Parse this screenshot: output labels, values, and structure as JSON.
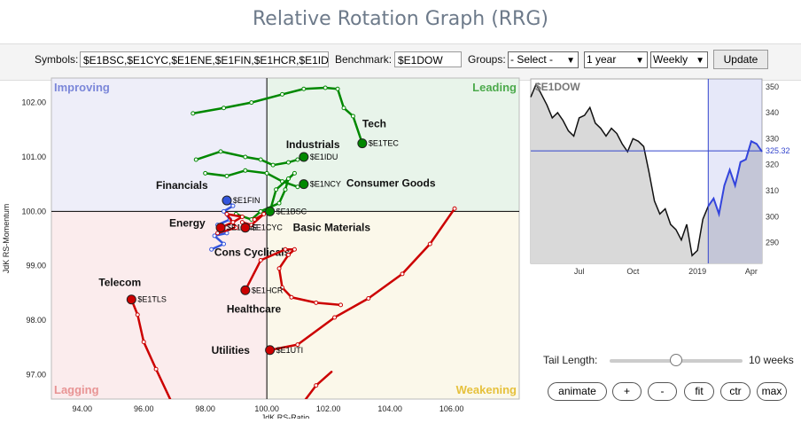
{
  "title": "Relative Rotation Graph (RRG)",
  "toolbar": {
    "symbols_label": "Symbols:",
    "symbols_value": "$E1BSC,$E1CYC,$E1ENE,$E1FIN,$E1HCR,$E1ID",
    "benchmark_label": "Benchmark:",
    "benchmark_value": "$E1DOW",
    "groups_label": "Groups:",
    "groups_value": "- Select -",
    "period_value": "1 year",
    "frequency_value": "Weekly",
    "update_label": "Update"
  },
  "chart_data": [
    {
      "type": "scatter",
      "xlabel": "JdK RS-Ratio",
      "ylabel": "JdK RS-Momentum",
      "xlim": [
        93,
        108.2
      ],
      "ylim": [
        96.55,
        102.45
      ],
      "xticks": [
        "94.00",
        "96.00",
        "98.00",
        "100.00",
        "102.00",
        "104.00",
        "106.00"
      ],
      "yticks": [
        "97.00",
        "98.00",
        "99.00",
        "100.00",
        "101.00",
        "102.00"
      ],
      "quadrants": {
        "improving": {
          "label": "Improving",
          "color": "#eeeef9",
          "text_color": "#7b87d9"
        },
        "leading": {
          "label": "Leading",
          "color": "#e8f4ea",
          "text_color": "#4caa4c"
        },
        "lagging": {
          "label": "Lagging",
          "color": "#fbeced",
          "text_color": "#e89494"
        },
        "weakening": {
          "label": "Weakening",
          "color": "#fbf8ea",
          "text_color": "#e6c13c"
        }
      },
      "series": [
        {
          "name": "Tech",
          "symbol": "$E1TEC",
          "color": "#008800",
          "points": [
            [
              97.6,
              101.8
            ],
            [
              98.6,
              101.9
            ],
            [
              99.5,
              102.0
            ],
            [
              100.5,
              102.15
            ],
            [
              101.2,
              102.25
            ],
            [
              101.9,
              102.27
            ],
            [
              102.3,
              102.25
            ],
            [
              102.5,
              101.9
            ],
            [
              102.8,
              101.75
            ],
            [
              103.1,
              101.25
            ]
          ]
        },
        {
          "name": "Industrials",
          "symbol": "$E1IDU",
          "color": "#008800",
          "points": [
            [
              97.7,
              100.95
            ],
            [
              98.5,
              101.1
            ],
            [
              99.3,
              101.0
            ],
            [
              99.8,
              100.95
            ],
            [
              100.2,
              100.85
            ],
            [
              100.7,
              100.9
            ],
            [
              101.0,
              100.95
            ],
            [
              101.2,
              101.0
            ]
          ]
        },
        {
          "name": "Consumer Goods",
          "symbol": "$E1NCY",
          "color": "#008800",
          "points": [
            [
              98.0,
              100.7
            ],
            [
              98.7,
              100.65
            ],
            [
              99.3,
              100.75
            ],
            [
              100.0,
              100.7
            ],
            [
              100.5,
              100.55
            ],
            [
              101.0,
              100.45
            ],
            [
              101.2,
              100.5
            ]
          ]
        },
        {
          "name": "Basic Materials",
          "symbol": "$E1BSC",
          "color": "#008800",
          "points": [
            [
              99.0,
              99.95
            ],
            [
              99.5,
              99.85
            ],
            [
              99.8,
              100.0
            ],
            [
              100.4,
              100.15
            ],
            [
              100.6,
              100.4
            ],
            [
              100.7,
              100.6
            ],
            [
              100.9,
              100.7
            ],
            [
              100.3,
              100.4
            ],
            [
              100.1,
              100.0
            ]
          ]
        },
        {
          "name": "Financials",
          "symbol": "$E1FIN",
          "color": "#3355dd",
          "points": [
            [
              98.2,
              99.3
            ],
            [
              98.6,
              99.4
            ],
            [
              98.3,
              99.55
            ],
            [
              98.7,
              99.6
            ],
            [
              98.4,
              99.75
            ],
            [
              98.8,
              99.85
            ],
            [
              98.6,
              100.0
            ],
            [
              98.9,
              100.1
            ],
            [
              98.7,
              100.2
            ]
          ]
        },
        {
          "name": "Energy",
          "symbol": "$E1ENE",
          "color": "#cc0000",
          "points": [
            [
              98.4,
              99.6
            ],
            [
              99.0,
              99.7
            ],
            [
              98.7,
              99.95
            ],
            [
              99.2,
              99.9
            ],
            [
              98.9,
              99.8
            ],
            [
              98.5,
              99.7
            ]
          ]
        },
        {
          "name": "Cons Cyclicals",
          "symbol": "$E1CYC",
          "color": "#cc0000",
          "points": [
            [
              99.6,
              99.85
            ],
            [
              99.9,
              99.95
            ],
            [
              99.5,
              99.75
            ],
            [
              99.2,
              99.8
            ],
            [
              99.3,
              99.7
            ]
          ]
        },
        {
          "name": "Healthcare",
          "symbol": "$E1HCR",
          "color": "#cc0000",
          "points": [
            [
              102.4,
              98.28
            ],
            [
              101.6,
              98.32
            ],
            [
              100.8,
              98.42
            ],
            [
              100.5,
              98.6
            ],
            [
              100.4,
              98.95
            ],
            [
              100.7,
              99.2
            ],
            [
              100.9,
              99.3
            ],
            [
              100.6,
              99.3
            ],
            [
              99.8,
              99.1
            ],
            [
              99.3,
              98.55
            ]
          ]
        },
        {
          "name": "Telecom",
          "symbol": "$E1TLS",
          "color": "#cc0000",
          "points": [
            [
              96.9,
              96.5
            ],
            [
              96.4,
              97.1
            ],
            [
              96.0,
              97.6
            ],
            [
              95.8,
              98.1
            ],
            [
              95.6,
              98.38
            ]
          ]
        },
        {
          "name": "Utilities",
          "symbol": "$E1UTI",
          "color": "#cc0000",
          "points": [
            [
              106.1,
              100.05
            ],
            [
              105.3,
              99.4
            ],
            [
              104.4,
              98.85
            ],
            [
              103.3,
              98.4
            ],
            [
              102.2,
              98.05
            ],
            [
              101.0,
              97.55
            ],
            [
              100.1,
              97.45
            ]
          ]
        },
        {
          "name": "",
          "symbol": "",
          "color": "#cc0000",
          "points": [
            [
              101.2,
              96.5
            ],
            [
              101.6,
              96.8
            ],
            [
              102.1,
              97.05
            ]
          ]
        }
      ]
    },
    {
      "type": "line",
      "title": "$E1DOW",
      "xticks": [
        "Jul",
        "Oct",
        "2019",
        "Apr"
      ],
      "yticks": [
        "350",
        "340",
        "330",
        "320",
        "310",
        "300",
        "290"
      ],
      "ylim": [
        282,
        353
      ],
      "current_value": "325.32",
      "values": [
        346,
        351,
        347,
        343,
        338,
        340,
        337,
        333,
        331,
        338,
        339,
        342,
        336,
        334,
        331,
        334,
        332,
        328,
        325,
        330,
        329,
        327,
        317,
        306,
        301,
        303,
        297,
        295,
        291,
        297,
        285,
        287,
        299,
        304,
        307,
        301,
        312,
        318,
        312,
        321,
        322,
        329,
        328,
        325
      ]
    }
  ],
  "tail": {
    "label": "Tail Length:",
    "value": 10,
    "max": 20,
    "value_text": "10 weeks"
  },
  "buttons": {
    "animate": "animate",
    "plus": "+",
    "minus": "-",
    "fit": "fit",
    "ctr": "ctr",
    "max": "max"
  }
}
